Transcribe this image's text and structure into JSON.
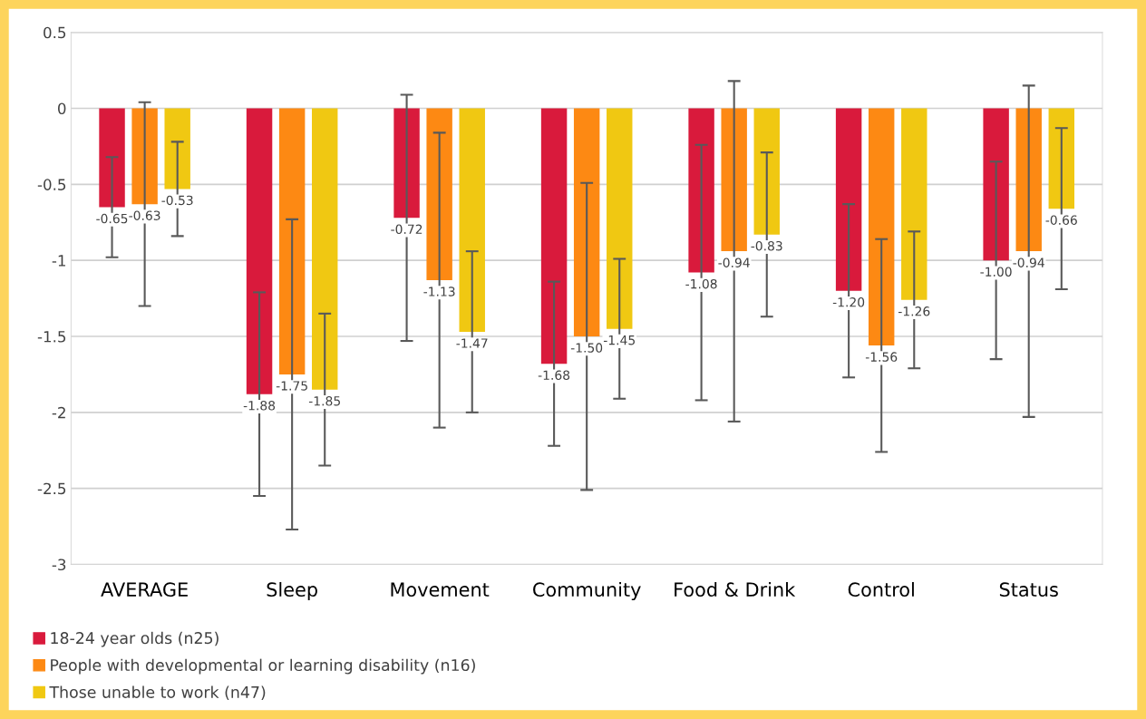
{
  "chart_data": {
    "type": "bar",
    "categories": [
      "AVERAGE",
      "Sleep",
      "Movement",
      "Community",
      "Food & Drink",
      "Control",
      "Status"
    ],
    "series": [
      {
        "name": "18-24 year olds (n25)",
        "color": "#d91a3c",
        "values": [
          -0.65,
          -1.88,
          -0.72,
          -1.68,
          -1.08,
          -1.2,
          -1.0
        ],
        "errors": [
          0.33,
          0.67,
          0.81,
          0.54,
          0.84,
          0.57,
          0.65
        ],
        "value_labels": [
          "-0.65",
          "-1.88",
          "-0.72",
          "-1.68",
          "-1.08",
          "-1.20",
          "-1.00"
        ]
      },
      {
        "name": "People with developmental or learning disability (n16)",
        "color": "#fd8913",
        "values": [
          -0.63,
          -1.75,
          -1.13,
          -1.5,
          -0.94,
          -1.56,
          -0.94
        ],
        "errors": [
          0.67,
          1.02,
          0.97,
          1.01,
          1.12,
          0.7,
          1.09
        ],
        "value_labels": [
          "-0.63",
          "-1.75",
          "-1.13",
          "-1.50",
          "-0.94",
          "-1.56",
          "-0.94"
        ]
      },
      {
        "name": "Those unable to work (n47)",
        "color": "#f0c812",
        "values": [
          -0.53,
          -1.85,
          -1.47,
          -1.45,
          -0.83,
          -1.26,
          -0.66
        ],
        "errors": [
          0.31,
          0.5,
          0.53,
          0.46,
          0.54,
          0.45,
          0.53
        ],
        "value_labels": [
          "-0.53",
          "-1.85",
          "-1.47",
          "-1.45",
          "-0.83",
          "-1.26",
          "-0.66"
        ]
      }
    ],
    "ylim": [
      -3,
      0.5
    ],
    "yticks": [
      {
        "value": -3,
        "label": "-3"
      },
      {
        "value": -2.5,
        "label": "-2.5"
      },
      {
        "value": -2,
        "label": "-2"
      },
      {
        "value": -1.5,
        "label": "-1.5"
      },
      {
        "value": -1,
        "label": "-1"
      },
      {
        "value": -0.5,
        "label": "-0.5"
      },
      0,
      0.5
    ],
    "grid": "y",
    "legend": "bottom left"
  }
}
